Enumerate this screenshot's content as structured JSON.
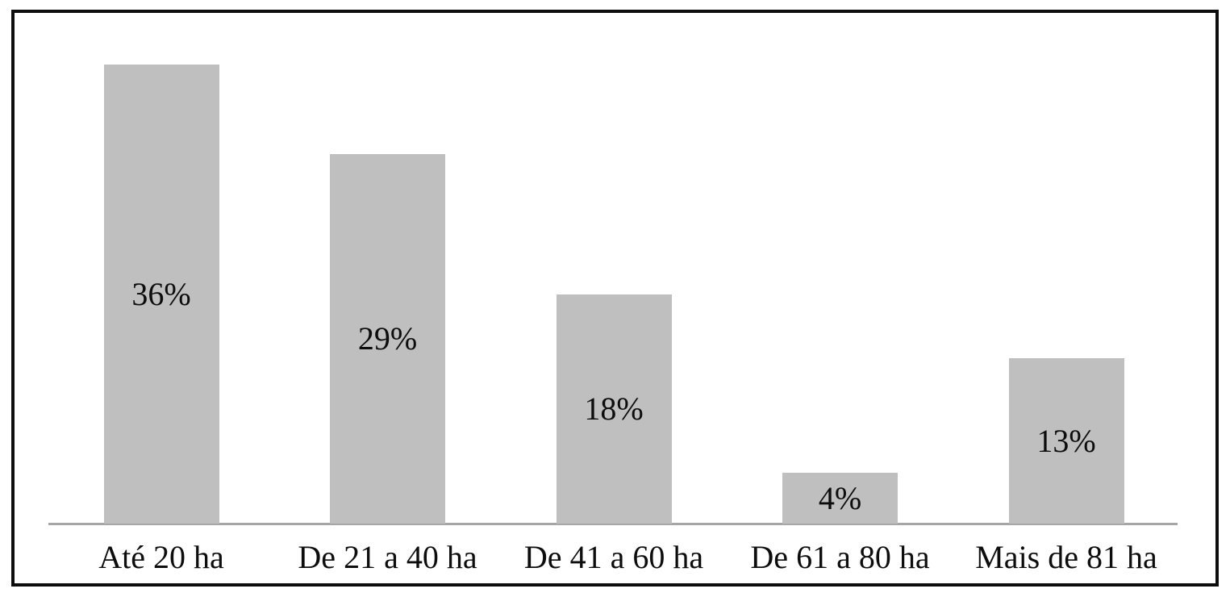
{
  "chart_data": {
    "type": "bar",
    "title": "",
    "xlabel": "",
    "ylabel": "",
    "categories": [
      "Até 20 ha",
      "De 21 a 40 ha",
      "De 41 a 60 ha",
      "De 61 a 80 ha",
      "Mais de 81 ha"
    ],
    "values": [
      36,
      29,
      18,
      4,
      13
    ],
    "value_labels": [
      "36%",
      "29%",
      "18%",
      "4%",
      "13%"
    ],
    "value_label_position": "inside-center",
    "ylim": [
      0,
      40
    ],
    "grid": false,
    "legend_position": "none",
    "y_axis_ticks_visible": false,
    "x_axis_line_visible": true,
    "colors": {
      "bar_fill": "#bfbfbf",
      "axis_line": "#a6a6a6",
      "frame_border": "#0d0d0d",
      "background": "#ffffff",
      "label_text": "#0d0d0d"
    }
  }
}
